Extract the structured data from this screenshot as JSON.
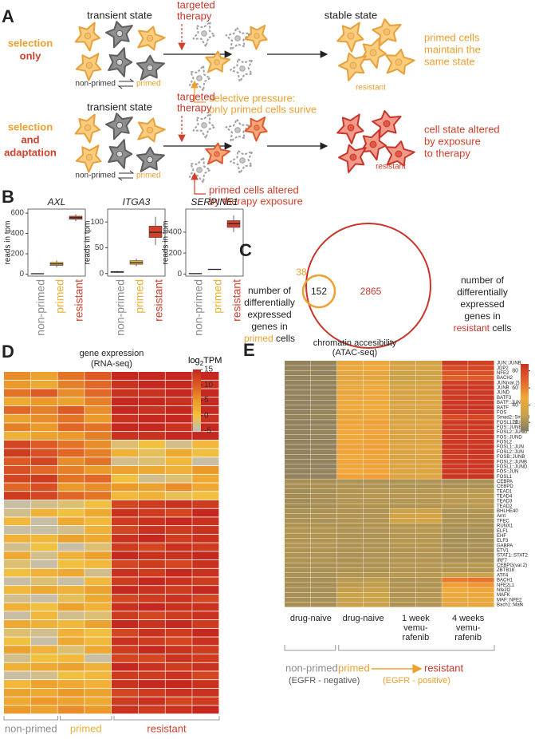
{
  "panel_a": {
    "letter": "A",
    "top": {
      "label": [
        "selection",
        "only"
      ],
      "state_left": "transient state",
      "therapy": [
        "targeted",
        "therapy"
      ],
      "state_right": "stable state",
      "outcome": [
        "primed cells",
        "maintain the",
        "same state"
      ],
      "resistant": "resistant",
      "non_primed": "non-primed",
      "primed": "primed",
      "pressure": [
        "selective pressure:",
        "only primed cells surive"
      ]
    },
    "bottom": {
      "label": [
        "selection",
        "and",
        "adaptation"
      ],
      "state_left": "transient state",
      "therapy": [
        "targeted",
        "therapy"
      ],
      "outcome": [
        "cell state altered",
        "by exposure",
        "to therapy"
      ],
      "resistant": "resistant",
      "non_primed": "non-primed",
      "primed": "primed",
      "pressure": [
        "primed cells altered",
        "by therapy exposure"
      ]
    }
  },
  "panel_b": {
    "letter": "B",
    "charts": [
      {
        "type": "box",
        "gene": "AXL",
        "ylabel": "reads in tpm",
        "categories": [
          "non-primed",
          "primed",
          "resistant"
        ],
        "colors": [
          "#8c8c8c",
          "#eeb030",
          "#d0402a"
        ],
        "ylim": [
          -20,
          640
        ],
        "yticks": [
          0,
          200,
          400,
          600
        ],
        "boxes": [
          {
            "low": 2,
            "q1": 3,
            "median": 4,
            "q3": 5,
            "high": 6
          },
          {
            "low": 65,
            "q1": 85,
            "median": 100,
            "q3": 115,
            "high": 135
          },
          {
            "low": 520,
            "q1": 540,
            "median": 555,
            "q3": 570,
            "high": 590
          }
        ]
      },
      {
        "type": "box",
        "gene": "ITGA3",
        "ylabel": "reads in tpm",
        "categories": [
          "non-primed",
          "primed",
          "resistant"
        ],
        "colors": [
          "#8c8c8c",
          "#eeb030",
          "#d0402a"
        ],
        "ylim": [
          -5,
          125
        ],
        "yticks": [
          0,
          50,
          100
        ],
        "boxes": [
          {
            "low": 1,
            "q1": 2,
            "median": 3,
            "q3": 4,
            "high": 5
          },
          {
            "low": 14,
            "q1": 18,
            "median": 21,
            "q3": 25,
            "high": 29
          },
          {
            "low": 55,
            "q1": 70,
            "median": 80,
            "q3": 92,
            "high": 110
          }
        ]
      },
      {
        "type": "box",
        "gene": "SERPINE1",
        "ylabel": "reads in tpm",
        "categories": [
          "non-primed",
          "primed",
          "resistant"
        ],
        "colors": [
          "#8c8c8c",
          "#eeb030",
          "#d0402a"
        ],
        "ylim": [
          -20,
          620
        ],
        "yticks": [
          0,
          200,
          400
        ],
        "boxes": [
          {
            "low": 2,
            "q1": 3,
            "median": 4,
            "q3": 5,
            "high": 6
          },
          {
            "low": 42,
            "q1": 43,
            "median": 45,
            "q3": 46,
            "high": 47
          },
          {
            "low": 400,
            "q1": 445,
            "median": 480,
            "q3": 510,
            "high": 560
          }
        ]
      }
    ]
  },
  "panel_c": {
    "letter": "C",
    "primed_only": 38,
    "shared": 152,
    "resistant_only": 2865,
    "left_text": [
      "number of",
      "differentially",
      "expressed",
      "genes in"
    ],
    "left_group": "primed",
    "left_suffix": " cells",
    "right_text": [
      "number of",
      "differentially",
      "expressed",
      "genes in"
    ],
    "right_group": "resistant",
    "right_suffix": " cells"
  },
  "panel_d": {
    "letter": "D",
    "title": [
      "gene expression",
      "(RNA-seq)"
    ],
    "legend_title": {
      "base": "log",
      "sub": "2",
      "unit": "TPM"
    },
    "colorbar": {
      "range": [
        -5,
        15
      ],
      "ticks": [
        15,
        10,
        5,
        0,
        -5
      ],
      "colors": [
        "#bdbdbd",
        "#f2c040",
        "#eb9a2a",
        "#dd5a24",
        "#c4281e"
      ]
    },
    "groups": [
      {
        "name": "non-primed",
        "color": "#8c8c8c"
      },
      {
        "name": "primed",
        "color": "#eeb030"
      },
      {
        "name": "resistant",
        "color": "#d0402a"
      }
    ],
    "matrix": [
      [
        6,
        4,
        8,
        10,
        15,
        15,
        15,
        15
      ],
      [
        5,
        3,
        7,
        9,
        14,
        15,
        15,
        14
      ],
      [
        8,
        10,
        6,
        9,
        14,
        14,
        15,
        15
      ],
      [
        3,
        5,
        4,
        7,
        15,
        15,
        14,
        15
      ],
      [
        9,
        7,
        10,
        6,
        15,
        14,
        15,
        15
      ],
      [
        4,
        6,
        8,
        5,
        14,
        15,
        15,
        14
      ],
      [
        7,
        5,
        9,
        8,
        15,
        15,
        14,
        15
      ],
      [
        2,
        4,
        5,
        7,
        14,
        14,
        15,
        15
      ],
      [
        12,
        10,
        8,
        6,
        -2,
        0,
        -3,
        1
      ],
      [
        13,
        11,
        9,
        7,
        2,
        -1,
        3,
        0
      ],
      [
        10,
        12,
        6,
        8,
        -3,
        -2,
        1,
        -4
      ],
      [
        11,
        9,
        7,
        5,
        4,
        3,
        2,
        5
      ],
      [
        12,
        13,
        8,
        9,
        0,
        -3,
        -2,
        3
      ],
      [
        9,
        11,
        5,
        6,
        5,
        4,
        6,
        3
      ],
      [
        13,
        12,
        9,
        8,
        1,
        2,
        -1,
        0
      ],
      [
        -4,
        -3,
        -2,
        0,
        12,
        13,
        14,
        13
      ],
      [
        -3,
        2,
        0,
        3,
        14,
        13,
        12,
        15
      ],
      [
        1,
        -4,
        3,
        1,
        13,
        14,
        15,
        14
      ],
      [
        -4,
        -4,
        -3,
        2,
        12,
        14,
        13,
        14
      ],
      [
        2,
        1,
        4,
        3,
        14,
        15,
        13,
        14
      ],
      [
        -3,
        0,
        -4,
        -2,
        13,
        12,
        14,
        13
      ],
      [
        3,
        -3,
        2,
        4,
        15,
        14,
        14,
        15
      ],
      [
        -2,
        -4,
        0,
        1,
        12,
        13,
        12,
        14
      ],
      [
        0,
        2,
        3,
        -3,
        14,
        13,
        15,
        14
      ],
      [
        -4,
        -2,
        -4,
        1,
        13,
        15,
        14,
        13
      ],
      [
        1,
        3,
        2,
        4,
        15,
        14,
        13,
        15
      ],
      [
        -3,
        -4,
        -1,
        3,
        12,
        13,
        14,
        12
      ],
      [
        2,
        0,
        4,
        2,
        14,
        15,
        14,
        14
      ],
      [
        -4,
        1,
        -3,
        -2,
        13,
        12,
        13,
        14
      ],
      [
        3,
        2,
        1,
        4,
        15,
        14,
        15,
        13
      ],
      [
        -2,
        -3,
        2,
        0,
        12,
        14,
        13,
        15
      ],
      [
        0,
        -4,
        3,
        1,
        14,
        13,
        12,
        14
      ],
      [
        4,
        2,
        -2,
        3,
        13,
        15,
        14,
        13
      ],
      [
        -3,
        0,
        1,
        -4,
        12,
        12,
        14,
        13
      ],
      [
        2,
        3,
        4,
        2,
        15,
        14,
        13,
        14
      ],
      [
        -4,
        -3,
        0,
        1,
        13,
        13,
        14,
        12
      ],
      [
        1,
        4,
        3,
        2,
        14,
        15,
        15,
        14
      ],
      [
        4,
        3,
        5,
        4,
        12,
        13,
        14,
        14
      ],
      [
        3,
        5,
        4,
        3,
        13,
        14,
        12,
        13
      ],
      [
        5,
        4,
        6,
        5,
        14,
        13,
        14,
        15
      ]
    ]
  },
  "panel_e": {
    "letter": "E",
    "title": [
      "chromatin accesibility",
      "(ATAC-seq)"
    ],
    "colorbar": {
      "range": [
        10,
        88
      ],
      "ticks": [
        80,
        60,
        40,
        20
      ],
      "colors": [
        "#857a62",
        "#c9a24a",
        "#f2a93a",
        "#e2642a",
        "#c83222"
      ]
    },
    "columns": [
      [
        "drug-naive"
      ],
      [
        "drug-naive"
      ],
      [
        "1 week",
        "vemu-",
        "rafenib"
      ],
      [
        "4 weeks",
        "vemu-",
        "rafenib"
      ]
    ],
    "bottom": {
      "non_primed": "non-primed",
      "non_primed_note": "(EGFR - negative)",
      "primed": "primed",
      "resistant": "resistant",
      "resistant_note": "(EGFR - positive)"
    },
    "rows": [
      "JUN::JUNB",
      "JDP2",
      "NFE2",
      "BACH2",
      "JUN(var.2)",
      "JUNB",
      "JUND",
      "BATF3",
      "BATF::JUN",
      "BATF",
      "FOS",
      "Smad2::Smad3",
      "FOSL1::JUNB",
      "FOS::JUNB",
      "FOSL2::JUND",
      "FOS::JUND",
      "FOSL2",
      "FOSL1::JUN",
      "FOSL2::JUN",
      "FOSB::JUNB",
      "FOSL2::JUNB",
      "FOSL1::JUND",
      "FOS::JUN",
      "FOSL1",
      "CEBPA",
      "CEBPD",
      "TEAD1",
      "TEAD4",
      "TEAD3",
      "TEAD2",
      "BHLHE40",
      "Arnt",
      "TFEC",
      "RUNX1",
      "ELF1",
      "EHF",
      "ELF3",
      "GABPA",
      "ETV1",
      "STAT1::STAT2",
      "IRF7",
      "CEBPG(var.2)",
      "ZBTB18",
      "ATF4",
      "BACH1",
      "NFE2L1",
      "Nfe2l2",
      "MAFK",
      "MAF::NFE2",
      "Bach1::Mafk"
    ],
    "matrix": [
      [
        14,
        15,
        44,
        46,
        36,
        34,
        84,
        82
      ],
      [
        15,
        15,
        45,
        47,
        35,
        36,
        78,
        80
      ],
      [
        15,
        14,
        42,
        44,
        32,
        33,
        74,
        76
      ],
      [
        15,
        16,
        41,
        42,
        30,
        32,
        70,
        72
      ],
      [
        14,
        15,
        43,
        45,
        34,
        35,
        82,
        84
      ],
      [
        14,
        14,
        45,
        47,
        36,
        36,
        85,
        86
      ],
      [
        15,
        15,
        44,
        46,
        35,
        37,
        84,
        85
      ],
      [
        14,
        15,
        46,
        47,
        36,
        38,
        85,
        86
      ],
      [
        14,
        14,
        47,
        48,
        37,
        38,
        86,
        86
      ],
      [
        14,
        15,
        47,
        48,
        37,
        38,
        86,
        87
      ],
      [
        14,
        15,
        46,
        47,
        36,
        37,
        85,
        86
      ],
      [
        15,
        16,
        44,
        45,
        35,
        36,
        78,
        80
      ],
      [
        14,
        14,
        50,
        52,
        38,
        40,
        84,
        85
      ],
      [
        14,
        15,
        50,
        51,
        38,
        39,
        84,
        85
      ],
      [
        14,
        15,
        49,
        50,
        37,
        38,
        84,
        84
      ],
      [
        14,
        15,
        49,
        51,
        37,
        39,
        84,
        85
      ],
      [
        14,
        14,
        50,
        51,
        38,
        39,
        85,
        85
      ],
      [
        14,
        14,
        51,
        52,
        39,
        40,
        86,
        86
      ],
      [
        14,
        15,
        50,
        51,
        38,
        40,
        85,
        86
      ],
      [
        14,
        15,
        49,
        50,
        37,
        38,
        84,
        85
      ],
      [
        14,
        14,
        50,
        51,
        38,
        39,
        85,
        85
      ],
      [
        14,
        14,
        50,
        51,
        38,
        39,
        85,
        86
      ],
      [
        14,
        15,
        49,
        50,
        38,
        39,
        85,
        85
      ],
      [
        14,
        14,
        51,
        52,
        39,
        40,
        86,
        87
      ],
      [
        20,
        20,
        22,
        22,
        22,
        23,
        20,
        21
      ],
      [
        20,
        21,
        22,
        23,
        22,
        22,
        21,
        21
      ],
      [
        19,
        20,
        23,
        24,
        24,
        24,
        25,
        25
      ],
      [
        19,
        20,
        23,
        24,
        24,
        25,
        25,
        26
      ],
      [
        19,
        20,
        23,
        24,
        24,
        24,
        25,
        25
      ],
      [
        19,
        20,
        23,
        23,
        23,
        24,
        24,
        25
      ],
      [
        21,
        21,
        22,
        22,
        30,
        31,
        22,
        23
      ],
      [
        21,
        22,
        23,
        23,
        34,
        35,
        22,
        22
      ],
      [
        21,
        21,
        23,
        23,
        33,
        34,
        22,
        22
      ],
      [
        22,
        22,
        22,
        23,
        24,
        24,
        21,
        21
      ],
      [
        23,
        23,
        22,
        22,
        24,
        25,
        20,
        20
      ],
      [
        23,
        23,
        22,
        22,
        24,
        24,
        20,
        20
      ],
      [
        23,
        23,
        22,
        22,
        24,
        24,
        20,
        20
      ],
      [
        23,
        23,
        22,
        22,
        24,
        24,
        20,
        21
      ],
      [
        22,
        22,
        22,
        22,
        23,
        24,
        20,
        20
      ],
      [
        22,
        22,
        21,
        22,
        23,
        23,
        21,
        21
      ],
      [
        22,
        22,
        21,
        22,
        23,
        23,
        21,
        21
      ],
      [
        21,
        21,
        22,
        22,
        24,
        24,
        24,
        25
      ],
      [
        21,
        21,
        22,
        22,
        23,
        23,
        23,
        23
      ],
      [
        21,
        21,
        23,
        23,
        25,
        25,
        30,
        31
      ],
      [
        20,
        20,
        25,
        26,
        22,
        23,
        62,
        64
      ],
      [
        20,
        20,
        26,
        27,
        22,
        22,
        52,
        54
      ],
      [
        20,
        20,
        28,
        29,
        23,
        23,
        48,
        50
      ],
      [
        20,
        20,
        30,
        31,
        23,
        24,
        45,
        46
      ],
      [
        20,
        20,
        29,
        30,
        23,
        23,
        44,
        45
      ],
      [
        20,
        20,
        29,
        30,
        22,
        23,
        42,
        44
      ]
    ]
  }
}
